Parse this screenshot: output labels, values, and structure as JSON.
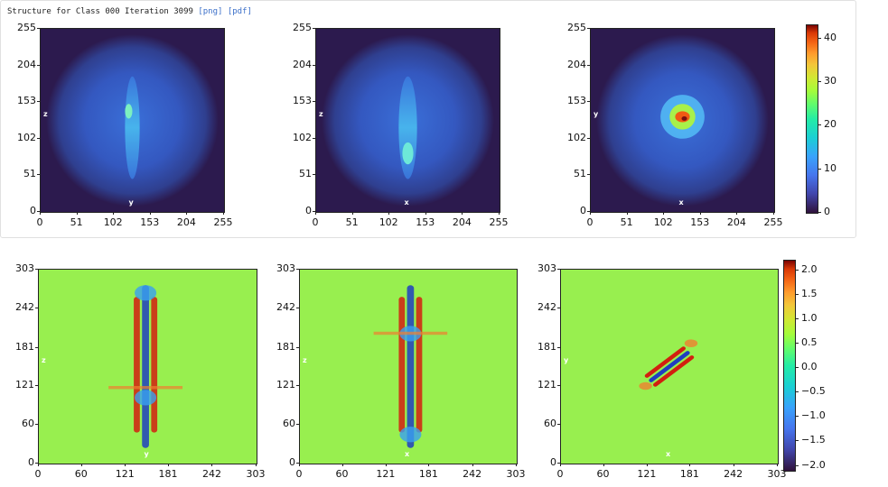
{
  "header": {
    "title": "Structure for Class 000 Iteration 3099",
    "links": [
      "[png]",
      "[pdf]"
    ]
  },
  "chart_data": [
    {
      "type": "heatmap",
      "title": "",
      "xlabel": "y",
      "ylabel": "z",
      "x_ticks": [
        "0",
        "51",
        "102",
        "153",
        "204",
        "255"
      ],
      "y_ticks": [
        "0",
        "51",
        "102",
        "153",
        "204",
        "255"
      ],
      "xlim": [
        0,
        255
      ],
      "ylim": [
        0,
        255
      ],
      "colormap": "turbo",
      "feature": "vertical"
    },
    {
      "type": "heatmap",
      "title": "",
      "xlabel": "x",
      "ylabel": "z",
      "x_ticks": [
        "0",
        "51",
        "102",
        "153",
        "204",
        "255"
      ],
      "y_ticks": [
        "0",
        "51",
        "102",
        "153",
        "204",
        "255"
      ],
      "xlim": [
        0,
        255
      ],
      "ylim": [
        0,
        255
      ],
      "colormap": "turbo",
      "feature": "vertical"
    },
    {
      "type": "heatmap",
      "title": "",
      "xlabel": "x",
      "ylabel": "y",
      "x_ticks": [
        "0",
        "51",
        "102",
        "153",
        "204",
        "255"
      ],
      "y_ticks": [
        "0",
        "51",
        "102",
        "153",
        "204",
        "255"
      ],
      "xlim": [
        0,
        255
      ],
      "ylim": [
        0,
        255
      ],
      "colormap": "turbo",
      "feature": "spot"
    },
    {
      "type": "heatmap",
      "title": "",
      "xlabel": "y",
      "ylabel": "z",
      "x_ticks": [
        "0",
        "60",
        "121",
        "181",
        "242",
        "303"
      ],
      "y_ticks": [
        "0",
        "60",
        "121",
        "181",
        "242",
        "303"
      ],
      "xlim": [
        0,
        303
      ],
      "ylim": [
        0,
        303
      ],
      "colormap": "turbo",
      "feature": "vertical"
    },
    {
      "type": "heatmap",
      "title": "",
      "xlabel": "x",
      "ylabel": "z",
      "x_ticks": [
        "0",
        "60",
        "121",
        "181",
        "242",
        "303"
      ],
      "y_ticks": [
        "0",
        "60",
        "121",
        "181",
        "242",
        "303"
      ],
      "xlim": [
        0,
        303
      ],
      "ylim": [
        0,
        303
      ],
      "colormap": "turbo",
      "feature": "vertical"
    },
    {
      "type": "heatmap",
      "title": "",
      "xlabel": "x",
      "ylabel": "y",
      "x_ticks": [
        "0",
        "60",
        "121",
        "181",
        "242",
        "303"
      ],
      "y_ticks": [
        "0",
        "60",
        "121",
        "181",
        "242",
        "303"
      ],
      "xlim": [
        0,
        303
      ],
      "ylim": [
        0,
        303
      ],
      "colormap": "turbo",
      "feature": "diagonal"
    }
  ],
  "colorbars": [
    {
      "ticks": [
        "0",
        "10",
        "20",
        "30",
        "40"
      ],
      "range": [
        0,
        43
      ]
    },
    {
      "ticks": [
        "−2.0",
        "−1.5",
        "−1.0",
        "−0.5",
        "0.0",
        "0.5",
        "1.0",
        "1.5",
        "2.0"
      ],
      "range": [
        -2.1,
        2.2
      ]
    }
  ]
}
